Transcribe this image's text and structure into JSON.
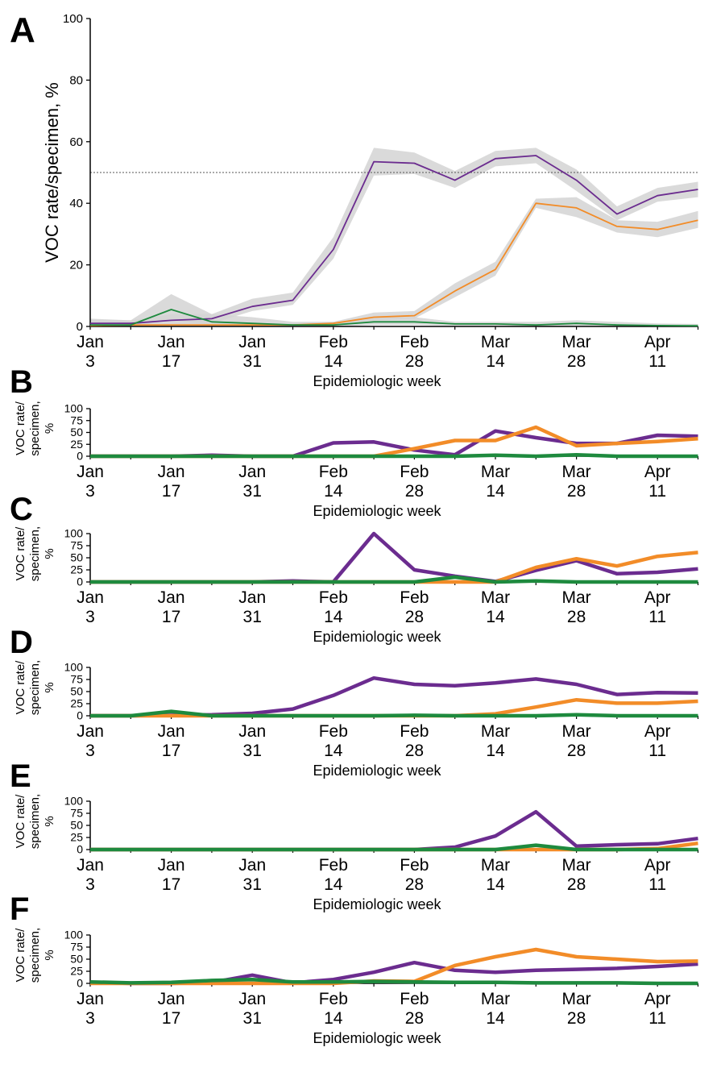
{
  "figure": {
    "x_tick_labels": [
      [
        "Jan",
        "3"
      ],
      [
        "Jan",
        "17"
      ],
      [
        "Jan",
        "31"
      ],
      [
        "Feb",
        "14"
      ],
      [
        "Feb",
        "28"
      ],
      [
        "Mar",
        "14"
      ],
      [
        "Mar",
        "28"
      ],
      [
        "Apr",
        "11"
      ]
    ],
    "x_tick_weeks": [
      0,
      2,
      4,
      6,
      8,
      10,
      12,
      14
    ],
    "colors": {
      "purple": "#6b2c8f",
      "orange": "#f28c28",
      "green": "#1e8a3e",
      "band": "#d3d3d3",
      "reference_line": "#555555"
    }
  },
  "chart_data": [
    {
      "panel": "A",
      "type": "line",
      "xlabel": "Epidemiologic week",
      "ylabel": "VOC rate/specimen, %",
      "ylim": [
        0,
        100
      ],
      "yticks": [
        0,
        20,
        40,
        60,
        80,
        100
      ],
      "reference_line": 50,
      "x": [
        0,
        1,
        2,
        3,
        4,
        5,
        6,
        7,
        8,
        9,
        10,
        11,
        12,
        13,
        14,
        15
      ],
      "series": [
        {
          "color": "purple",
          "values": [
            1,
            1,
            2,
            2.5,
            6.5,
            8.5,
            25,
            53.5,
            53,
            47.5,
            54.5,
            55.5,
            47.5,
            36.5,
            42.5,
            44.5
          ],
          "ci_lower": [
            0,
            0,
            0.5,
            1,
            5,
            7,
            22,
            49,
            49.5,
            45,
            52,
            53,
            44,
            34.5,
            40.5,
            42
          ],
          "ci_upper": [
            2.5,
            2,
            4,
            4,
            9,
            11,
            29,
            58,
            56.5,
            50.5,
            57,
            58,
            51,
            39,
            45,
            47
          ]
        },
        {
          "color": "orange",
          "values": [
            0.3,
            0.5,
            0.5,
            0.5,
            0.5,
            0.5,
            1,
            3,
            3.5,
            11.5,
            18.5,
            40,
            38.5,
            32.5,
            31.5,
            34.5
          ],
          "ci_lower": [
            0,
            0,
            0,
            0,
            0,
            0,
            0.5,
            2,
            2.5,
            9.5,
            16.5,
            38.5,
            35.5,
            30.5,
            29,
            32
          ],
          "ci_upper": [
            1,
            1,
            1,
            1,
            1,
            1,
            1.5,
            4.5,
            5,
            14,
            21,
            41.5,
            42,
            34.5,
            34,
            37.5
          ]
        },
        {
          "color": "green",
          "values": [
            0.5,
            0.5,
            5.5,
            1.5,
            1,
            0.5,
            0.5,
            1.5,
            1.5,
            0.8,
            0.8,
            0.5,
            1,
            0.5,
            0.3,
            0.2
          ],
          "ci_lower": [
            0,
            0,
            2,
            0.5,
            0,
            0,
            0,
            0.5,
            0.5,
            0.3,
            0.3,
            0,
            0.3,
            0,
            0,
            0
          ],
          "ci_upper": [
            2,
            2,
            10.5,
            4,
            3,
            1.5,
            1.5,
            3,
            3,
            1.5,
            1.5,
            1.5,
            2,
            1.5,
            1,
            0.8
          ]
        }
      ]
    },
    {
      "panel": "B",
      "type": "line",
      "xlabel": "Epidemiologic week",
      "ylabel_lines": [
        "VOC rate/",
        "specimen,",
        "%"
      ],
      "ylim": [
        0,
        100
      ],
      "yticks": [
        0,
        25,
        50,
        75,
        100
      ],
      "x": [
        0,
        1,
        2,
        3,
        4,
        5,
        6,
        7,
        8,
        9,
        10,
        11,
        12,
        13,
        14,
        15
      ],
      "series": [
        {
          "color": "purple",
          "values": [
            0,
            0,
            0,
            2,
            0,
            0,
            28,
            30,
            13,
            3,
            53,
            39,
            27,
            27,
            44,
            42
          ]
        },
        {
          "color": "orange",
          "values": [
            0,
            0,
            0,
            0,
            0,
            0,
            0,
            0,
            16,
            33,
            33,
            61,
            22,
            27,
            31,
            37
          ]
        },
        {
          "color": "green",
          "values": [
            0,
            0,
            0,
            0,
            0,
            0,
            0,
            0,
            0,
            0,
            2,
            0,
            3,
            0,
            0,
            0
          ]
        }
      ]
    },
    {
      "panel": "C",
      "type": "line",
      "xlabel": "Epidemiologic week",
      "ylabel_lines": [
        "VOC rate/",
        "specimen,",
        "%"
      ],
      "ylim": [
        0,
        100
      ],
      "yticks": [
        0,
        25,
        50,
        75,
        100
      ],
      "x": [
        0,
        1,
        2,
        3,
        4,
        5,
        6,
        7,
        8,
        9,
        10,
        11,
        12,
        13,
        14,
        15
      ],
      "series": [
        {
          "color": "purple",
          "values": [
            0,
            0,
            0,
            0,
            0,
            2,
            0,
            100,
            25,
            12,
            1,
            24,
            44,
            17,
            20,
            27
          ]
        },
        {
          "color": "orange",
          "values": [
            0,
            0,
            0,
            0,
            0,
            0,
            0,
            0,
            0,
            0,
            0,
            30,
            48,
            33,
            53,
            61
          ]
        },
        {
          "color": "green",
          "values": [
            0,
            0,
            0,
            0,
            0,
            0,
            0,
            0,
            0,
            10,
            0,
            2,
            0,
            0,
            0,
            0
          ]
        }
      ]
    },
    {
      "panel": "D",
      "type": "line",
      "xlabel": "Epidemiologic week",
      "ylabel_lines": [
        "VOC rate/",
        "specimen,",
        "%"
      ],
      "ylim": [
        0,
        100
      ],
      "yticks": [
        0,
        25,
        50,
        75,
        100
      ],
      "x": [
        0,
        1,
        2,
        3,
        4,
        5,
        6,
        7,
        8,
        9,
        10,
        11,
        12,
        13,
        14,
        15
      ],
      "series": [
        {
          "color": "purple",
          "values": [
            0,
            0,
            1,
            2,
            5,
            14,
            42,
            78,
            65,
            62,
            68,
            76,
            65,
            44,
            48,
            47
          ]
        },
        {
          "color": "orange",
          "values": [
            0,
            0,
            0,
            0,
            0,
            0,
            0,
            0,
            0,
            0,
            4,
            18,
            33,
            26,
            26,
            30
          ]
        },
        {
          "color": "green",
          "values": [
            0,
            0,
            9,
            0,
            0,
            0,
            0,
            0,
            1,
            0,
            0,
            0,
            2,
            0,
            0,
            0
          ]
        }
      ]
    },
    {
      "panel": "E",
      "type": "line",
      "xlabel": "Epidemiologic week",
      "ylabel_lines": [
        "VOC rate/",
        "specimen,",
        "%"
      ],
      "ylim": [
        0,
        100
      ],
      "yticks": [
        0,
        25,
        50,
        75,
        100
      ],
      "x": [
        0,
        1,
        2,
        3,
        4,
        5,
        6,
        7,
        8,
        9,
        10,
        11,
        12,
        13,
        14,
        15
      ],
      "series": [
        {
          "color": "purple",
          "values": [
            0,
            0,
            0,
            0,
            0,
            0,
            0,
            0,
            0,
            5,
            28,
            78,
            7,
            10,
            12,
            23
          ]
        },
        {
          "color": "orange",
          "values": [
            0,
            0,
            0,
            0,
            0,
            0,
            0,
            0,
            0,
            0,
            0,
            0,
            0,
            0,
            2,
            13
          ]
        },
        {
          "color": "green",
          "values": [
            0,
            0,
            0,
            0,
            0,
            0,
            0,
            0,
            0,
            0,
            0,
            9,
            0,
            0,
            0,
            0
          ]
        }
      ]
    },
    {
      "panel": "F",
      "type": "line",
      "xlabel": "Epidemiologic week",
      "ylabel_lines": [
        "VOC rate/",
        "specimen,",
        "%"
      ],
      "ylim": [
        0,
        100
      ],
      "yticks": [
        0,
        25,
        50,
        75,
        100
      ],
      "x": [
        0,
        1,
        2,
        3,
        4,
        5,
        6,
        7,
        8,
        9,
        10,
        11,
        12,
        13,
        14,
        15
      ],
      "series": [
        {
          "color": "purple",
          "values": [
            2,
            0,
            0,
            2,
            17,
            1,
            8,
            23,
            43,
            27,
            23,
            27,
            29,
            31,
            35,
            40
          ]
        },
        {
          "color": "orange",
          "values": [
            0,
            0,
            0,
            0,
            0,
            0,
            0,
            5,
            4,
            37,
            55,
            70,
            55,
            50,
            45,
            46
          ]
        },
        {
          "color": "green",
          "values": [
            3,
            1,
            2,
            6,
            8,
            3,
            3,
            4,
            3,
            2,
            2,
            1,
            1,
            1,
            0,
            0
          ]
        }
      ]
    }
  ]
}
